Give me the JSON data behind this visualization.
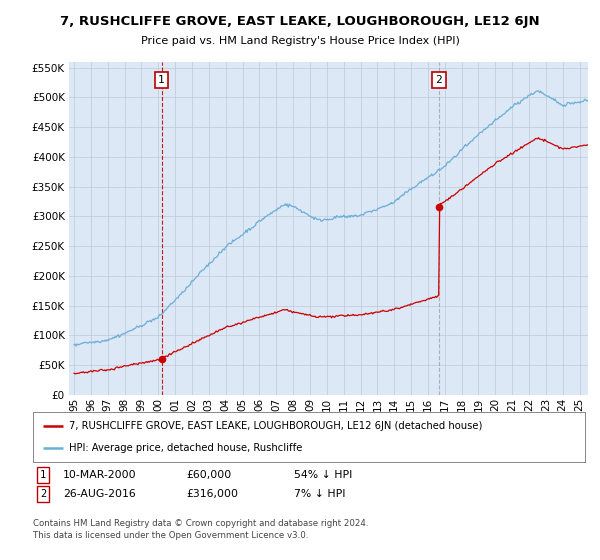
{
  "title": "7, RUSHCLIFFE GROVE, EAST LEAKE, LOUGHBOROUGH, LE12 6JN",
  "subtitle": "Price paid vs. HM Land Registry's House Price Index (HPI)",
  "hpi_color": "#6baed6",
  "price_color": "#cc0000",
  "vline1_color": "#cc0000",
  "vline1_style": "--",
  "vline2_color": "#999999",
  "vline2_style": "--",
  "background_color": "#dce8f5",
  "plot_bg": "#ffffff",
  "ylim": [
    0,
    560000
  ],
  "yticks": [
    0,
    50000,
    100000,
    150000,
    200000,
    250000,
    300000,
    350000,
    400000,
    450000,
    500000,
    550000
  ],
  "sale1_x": 2000.19,
  "sale1_y": 60000,
  "sale1_label": "1",
  "sale2_x": 2016.65,
  "sale2_y": 316000,
  "sale2_label": "2",
  "legend_line1": "7, RUSHCLIFFE GROVE, EAST LEAKE, LOUGHBOROUGH, LE12 6JN (detached house)",
  "legend_line2": "HPI: Average price, detached house, Rushcliffe",
  "table_row1_date": "10-MAR-2000",
  "table_row1_price": "£60,000",
  "table_row1_hpi": "54% ↓ HPI",
  "table_row2_date": "26-AUG-2016",
  "table_row2_price": "£316,000",
  "table_row2_hpi": "7% ↓ HPI",
  "footnote1": "Contains HM Land Registry data © Crown copyright and database right 2024.",
  "footnote2": "This data is licensed under the Open Government Licence v3.0.",
  "xmin": 1994.7,
  "xmax": 2025.5
}
